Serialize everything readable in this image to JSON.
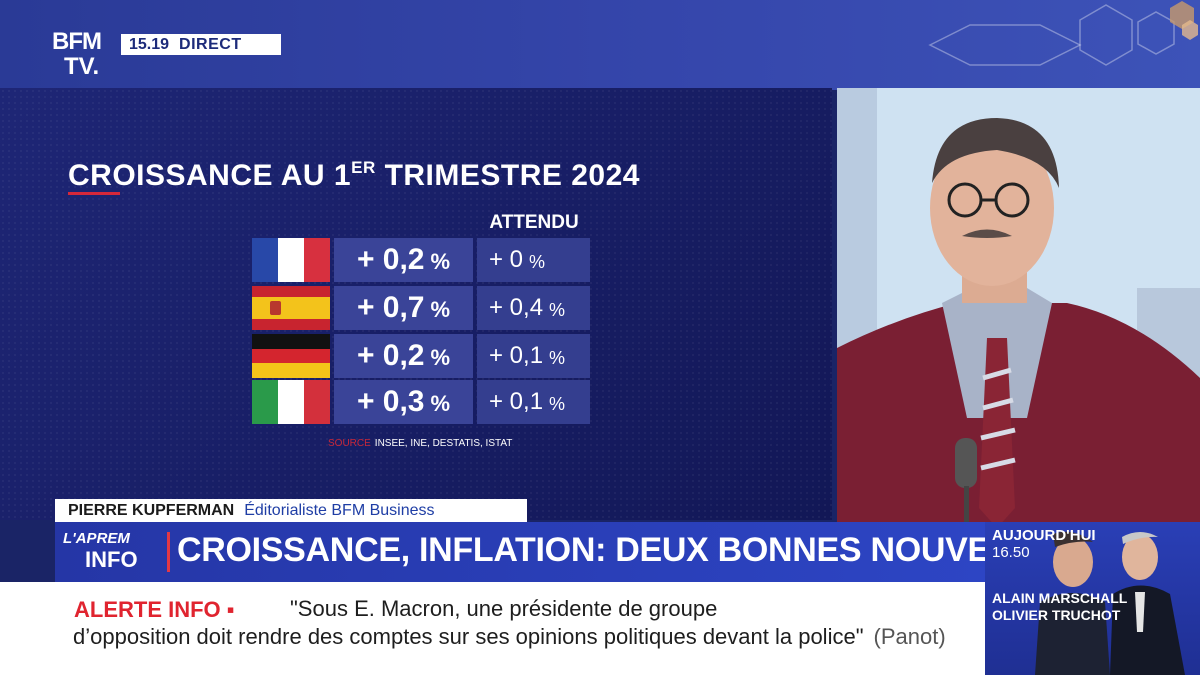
{
  "channel": {
    "logo_line1": "BFM",
    "logo_line2": "TV.",
    "time": "15.19",
    "live": "DIRECT"
  },
  "graphic": {
    "title_main": "CROISSANCE AU 1",
    "title_sup": "ER",
    "title_end": " TRIMESTRE 2024",
    "expected_header": "ATTENDU",
    "rows": [
      {
        "country_flag": "france-flag",
        "value": "+ 0,2",
        "value_unit": "%",
        "expected": "+ 0",
        "expected_unit": "%"
      },
      {
        "country_flag": "spain-flag",
        "value": "+ 0,7",
        "value_unit": "%",
        "expected": "+ 0,4",
        "expected_unit": "%"
      },
      {
        "country_flag": "germany-flag",
        "value": "+ 0,2",
        "value_unit": "%",
        "expected": "+ 0,1",
        "expected_unit": "%"
      },
      {
        "country_flag": "italy-flag",
        "value": "+ 0,3",
        "value_unit": "%",
        "expected": "+ 0,1",
        "expected_unit": "%"
      }
    ],
    "source_label": "SOURCE",
    "source_text": "INSEE, INE,  DESTATIS, ISTAT"
  },
  "strap": {
    "name": "PIERRE KUPFERMAN",
    "role": "Éditorialiste BFM Business"
  },
  "show": {
    "logo_line1": "L'APREM",
    "logo_line2": "INFO"
  },
  "headline": "CROISSANCE, INFLATION: DEUX BONNES NOUVELLES !",
  "program": {
    "today": "AUJOURD'HUI",
    "time": "16.50",
    "name1": "ALAIN MARSCHALL",
    "name2": "OLIVIER TRUCHOT"
  },
  "alert": {
    "label": "ALERTE INFO ▪",
    "line1": "\"Sous E. Macron, une présidente de groupe",
    "line2": "d’opposition doit rendre des comptes sur ses opinions politiques devant la police\"",
    "attribution": "(Panot)"
  },
  "colors": {
    "brand_blue": "#2d45c4",
    "alert_red": "#e0242f",
    "cell_blue": "#3a4498"
  }
}
